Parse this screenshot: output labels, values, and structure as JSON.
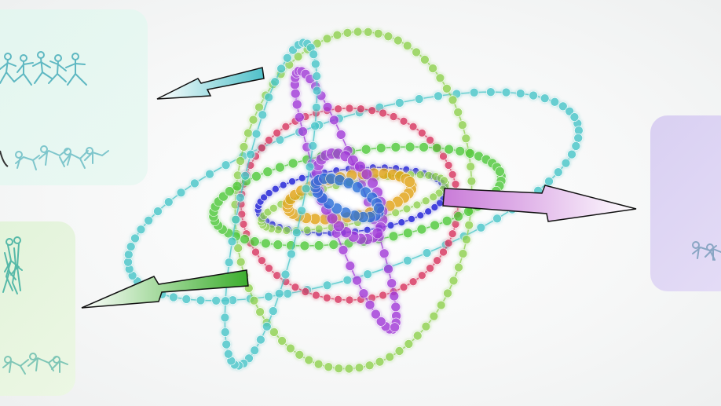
{
  "colors": {
    "cyan": "#48c6c9",
    "lime": "#8fd14f",
    "green": "#4fc93a",
    "crimson": "#d8345f",
    "violet": "#a23ad8",
    "blue": "#1d1ad6",
    "gold": "#e2a317",
    "panel_mint": "#e3f6ef",
    "panel_green": "#e2f3da",
    "panel_lavender": "#d9d0f2",
    "arrow_cyan": "#5fc7cf",
    "arrow_green": "#3fae2f",
    "arrow_pink": "#cf8fdc"
  },
  "icons": [
    "running-figures-icon",
    "walking-figures-icon",
    "crawling-figures-icon"
  ]
}
